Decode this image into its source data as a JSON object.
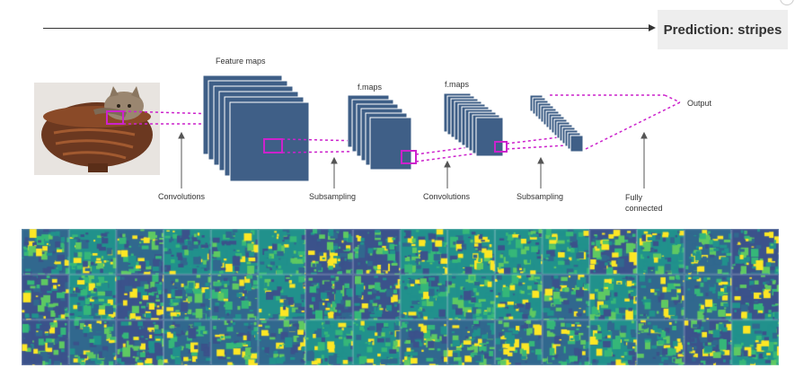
{
  "prediction": "Prediction: stripes",
  "labels": {
    "feature_maps": "Feature maps",
    "fmaps_1": "f.maps",
    "fmaps_2": "f.maps",
    "output": "Output",
    "convolutions_1": "Convolutions",
    "subsampling_1": "Subsampling",
    "convolutions_2": "Convolutions",
    "subsampling_2": "Subsampling",
    "fully_connected": "Fully\nconnected"
  },
  "colors": {
    "map_fill": "#3f5f87",
    "map_stroke": "#ffffff",
    "highlight": "#cc22cc",
    "viridis_dark": "#3b528b",
    "viridis_mid": "#21918c",
    "viridis_light": "#5ec962",
    "viridis_yellow": "#fde725"
  }
}
